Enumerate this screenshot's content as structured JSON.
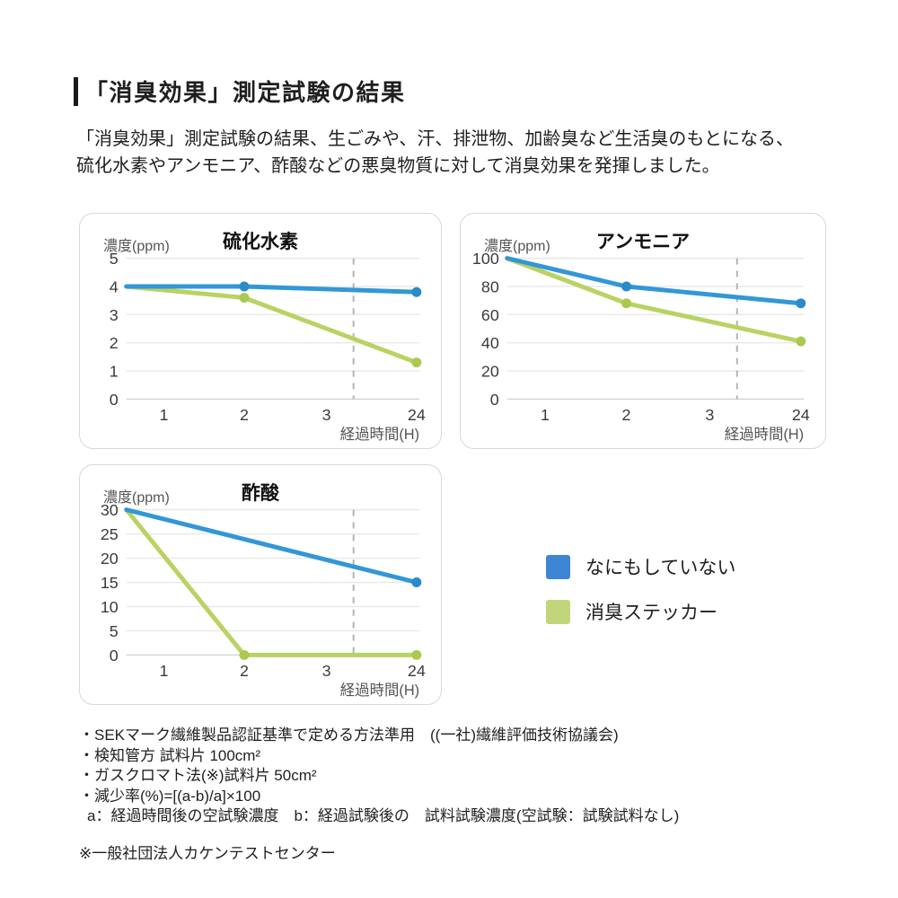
{
  "header": {
    "title": "「消臭効果」測定試験の結果"
  },
  "intro": {
    "text": "「消臭効果」測定試験の結果、生ごみや、汗、排泄物、加齢臭など生活臭のもとになる、\n硫化水素やアンモニア、酢酸などの悪臭物質に対して消臭効果を発揮しました。"
  },
  "colors": {
    "untreated_line": "#3297d7",
    "untreated_dot": "#2b8ac9",
    "sticker_line": "#bad263",
    "sticker_dot": "#a9c94f",
    "legend_blue": "#3e86d5",
    "legend_green": "#c1d67a",
    "grid": "#e8e8e8",
    "axis_break_dash": "#b4b4b4"
  },
  "legend": {
    "items": [
      {
        "label": "なにもしていない",
        "color": "#3e86d5"
      },
      {
        "label": "消臭ステッカー",
        "color": "#c1d67a"
      }
    ]
  },
  "chart_data": [
    {
      "type": "line",
      "title": "硫化水素",
      "ylabel": "濃度(ppm)",
      "xlabel": "経過時間(H)",
      "x_ticks": [
        "1",
        "2",
        "3",
        "24"
      ],
      "y_ticks": [
        0,
        1,
        2,
        3,
        4,
        5
      ],
      "ylim": [
        0,
        5
      ],
      "x_positions": {
        "0": 0,
        "1": 0.128,
        "2": 0.402,
        "3": 0.683,
        "24": 0.99
      },
      "axis_break_x": 0.775,
      "grid": true,
      "series": [
        {
          "name": "なにもしていない",
          "color": "#3297d7",
          "dot_color": "#2b8ac9",
          "points": [
            {
              "t": 0,
              "y": 4
            },
            {
              "t": 2,
              "y": 4,
              "dot": true
            },
            {
              "t": 24,
              "y": 3.8,
              "dot": true
            }
          ]
        },
        {
          "name": "消臭ステッカー",
          "color": "#bad263",
          "dot_color": "#a9c94f",
          "points": [
            {
              "t": 0,
              "y": 4
            },
            {
              "t": 2,
              "y": 3.6,
              "dot": true
            },
            {
              "t": 24,
              "y": 1.3,
              "dot": true
            }
          ]
        }
      ]
    },
    {
      "type": "line",
      "title": "アンモニア",
      "ylabel": "濃度(ppm)",
      "xlabel": "経過時間(H)",
      "x_ticks": [
        "1",
        "2",
        "3",
        "24"
      ],
      "y_ticks": [
        0,
        20,
        40,
        60,
        80,
        100
      ],
      "ylim": [
        0,
        100
      ],
      "x_positions": {
        "0": 0,
        "1": 0.128,
        "2": 0.402,
        "3": 0.683,
        "24": 0.99
      },
      "axis_break_x": 0.775,
      "grid": true,
      "series": [
        {
          "name": "なにもしていない",
          "color": "#3297d7",
          "dot_color": "#2b8ac9",
          "points": [
            {
              "t": 0,
              "y": 100
            },
            {
              "t": 2,
              "y": 80,
              "dot": true
            },
            {
              "t": 24,
              "y": 68,
              "dot": true
            }
          ]
        },
        {
          "name": "消臭ステッカー",
          "color": "#bad263",
          "dot_color": "#a9c94f",
          "points": [
            {
              "t": 0,
              "y": 100
            },
            {
              "t": 2,
              "y": 68,
              "dot": true
            },
            {
              "t": 24,
              "y": 41,
              "dot": true
            }
          ]
        }
      ]
    },
    {
      "type": "line",
      "title": "酢酸",
      "ylabel": "濃度(ppm)",
      "xlabel": "経過時間(H)",
      "x_ticks": [
        "1",
        "2",
        "3",
        "24"
      ],
      "y_ticks": [
        0,
        5,
        10,
        15,
        20,
        25,
        30
      ],
      "ylim": [
        0,
        30
      ],
      "x_positions": {
        "0": 0,
        "1": 0.128,
        "2": 0.402,
        "3": 0.683,
        "24": 0.99
      },
      "axis_break_x": 0.775,
      "grid": true,
      "series": [
        {
          "name": "なにもしていない",
          "color": "#3297d7",
          "dot_color": "#2b8ac9",
          "points": [
            {
              "t": 0,
              "y": 30
            },
            {
              "t": 24,
              "y": 15,
              "dot": true
            }
          ]
        },
        {
          "name": "消臭ステッカー",
          "color": "#bad263",
          "dot_color": "#a9c94f",
          "points": [
            {
              "t": 0,
              "y": 30
            },
            {
              "t": 2,
              "y": 0,
              "dot": true
            },
            {
              "t": 24,
              "y": 0,
              "dot": true
            }
          ]
        }
      ]
    }
  ],
  "notes": {
    "lines": [
      "・SEKマーク繊維製品認証基準で定める方法準用　((一社)繊維評価技術協議会)",
      "・検知管方 試料片 100cm²",
      "・ガスクロマト法(※)試料片 50cm²",
      "・減少率(%)=[(a-b)/a]×100",
      "a：経過時間後の空試験濃度　b：経過試験後の　試料試験濃度(空試験：試験試料なし)"
    ]
  },
  "footnote": "※一般社団法人カケンテストセンター"
}
